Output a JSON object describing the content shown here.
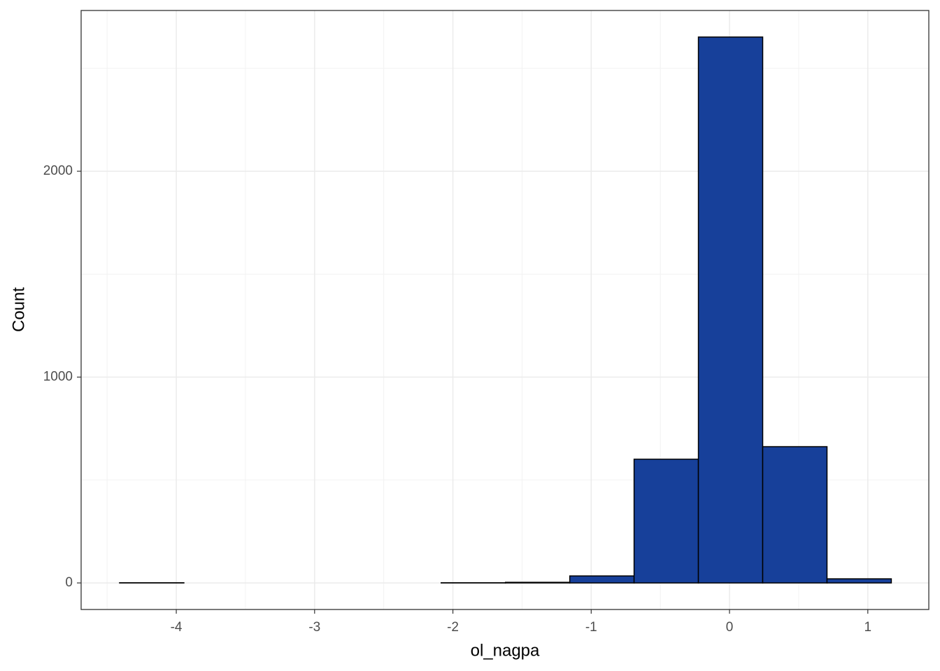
{
  "chart_data": {
    "type": "histogram",
    "x_label": "ol_nagpa",
    "y_label": "Count",
    "bins": [
      -4.41,
      -3.945,
      -3.48,
      -3.015,
      -2.55,
      -2.085,
      -1.62,
      -1.155,
      -0.69,
      -0.225,
      0.24,
      0.705,
      1.17
    ],
    "values": [
      1,
      0,
      0,
      0,
      0,
      1,
      3,
      34,
      601,
      2652,
      662,
      20
    ],
    "color": "#17409a",
    "edge_color": "#000000",
    "xlim": [
      -4.688,
      1.441
    ],
    "ylim": [
      -129,
      2781
    ],
    "xticks": [
      -4,
      -3,
      -2,
      -1,
      0,
      1
    ],
    "yticks": [
      0,
      1000,
      2000
    ],
    "xminor": [
      -4.5,
      -3.5,
      -2.5,
      -1.5,
      -0.5,
      0.5
    ],
    "yminor": [
      500,
      1500,
      2500
    ],
    "grid": true
  }
}
